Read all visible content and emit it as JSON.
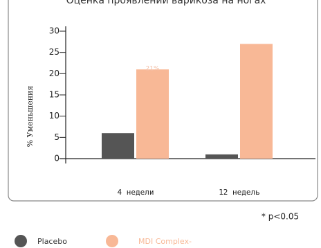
{
  "chart_data": {
    "type": "bar",
    "title": "Оценка проявлений варикоза на ногах",
    "y_label": "% Уменьшения",
    "categories": [
      "4 недели",
      "12 недель"
    ],
    "series": [
      {
        "name": "Placebo",
        "color": "#555555",
        "values": [
          6,
          1
        ]
      },
      {
        "name": "MDI Complex-",
        "color": "#f8b896",
        "values": [
          21,
          27
        ],
        "value_labels": [
          "21%",
          null
        ]
      }
    ],
    "ylim": [
      0,
      30
    ],
    "yticks": [
      0,
      5,
      10,
      15,
      20,
      25,
      30
    ],
    "footnote": "* p<0.05"
  }
}
